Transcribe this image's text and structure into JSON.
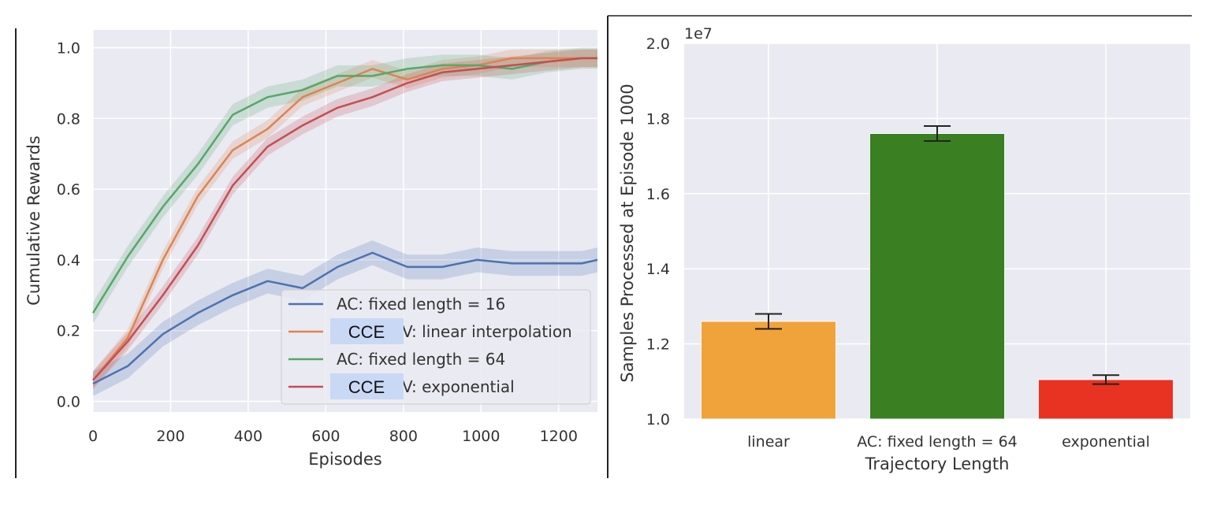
{
  "colors": {
    "blue": "#4c72b0",
    "orange": "#dd8452",
    "green": "#55a868",
    "red": "#c44e52",
    "bar_orange": "#f0a33a",
    "bar_green": "#3a7f22",
    "bar_red": "#e83323",
    "panel_bg": "#eaeaf2",
    "redaction": "#c9d8f5"
  },
  "chart_data": [
    {
      "type": "line",
      "xlabel": "Episodes",
      "ylabel": "Cumulative Rewards",
      "xlim": [
        0,
        1300
      ],
      "ylim": [
        -0.03,
        1.05
      ],
      "xticks": [
        "0",
        "200",
        "400",
        "600",
        "800",
        "1000",
        "1200"
      ],
      "yticks": [
        "0.0",
        "0.2",
        "0.4",
        "0.6",
        "0.8",
        "1.0"
      ],
      "grid": true,
      "legend_position": "lower-right",
      "x": [
        0,
        90,
        180,
        270,
        360,
        450,
        540,
        630,
        720,
        810,
        900,
        990,
        1080,
        1170,
        1260,
        1300
      ],
      "series": [
        {
          "name": "AC: fixed length = 16",
          "color_key": "blue",
          "values": [
            0.05,
            0.1,
            0.19,
            0.25,
            0.3,
            0.34,
            0.32,
            0.38,
            0.42,
            0.38,
            0.38,
            0.4,
            0.39,
            0.39,
            0.39,
            0.4
          ],
          "band": 0.035
        },
        {
          "name_prefix": "CCE",
          "name_suffix": "V: linear interpolation",
          "color_key": "orange",
          "values": [
            0.06,
            0.18,
            0.4,
            0.58,
            0.71,
            0.77,
            0.86,
            0.9,
            0.94,
            0.91,
            0.94,
            0.95,
            0.97,
            0.97,
            0.97,
            0.97
          ],
          "band": 0.025
        },
        {
          "name": "AC: fixed length = 64",
          "color_key": "green",
          "values": [
            0.25,
            0.41,
            0.55,
            0.67,
            0.81,
            0.86,
            0.88,
            0.92,
            0.92,
            0.94,
            0.95,
            0.95,
            0.94,
            0.96,
            0.97,
            0.97
          ],
          "band": 0.03
        },
        {
          "name_prefix": "CCE",
          "name_suffix": "V: exponential",
          "color_key": "red",
          "values": [
            0.06,
            0.17,
            0.3,
            0.44,
            0.61,
            0.72,
            0.78,
            0.83,
            0.86,
            0.9,
            0.93,
            0.94,
            0.95,
            0.96,
            0.97,
            0.97
          ],
          "band": 0.025
        }
      ]
    },
    {
      "type": "bar",
      "xlabel": "Trajectory Length",
      "ylabel": "Samples Processed at Episode 1000",
      "offset_label": "1e7",
      "ylim": [
        1.0,
        2.0
      ],
      "yticks": [
        "1.0",
        "1.2",
        "1.4",
        "1.6",
        "1.8",
        "2.0"
      ],
      "grid": true,
      "categories": [
        "linear",
        "AC: fixed length = 64",
        "exponential"
      ],
      "values": [
        1.26,
        1.76,
        1.105
      ],
      "errors": [
        0.02,
        0.02,
        0.012
      ],
      "color_keys": [
        "bar_orange",
        "bar_green",
        "bar_red"
      ]
    }
  ]
}
